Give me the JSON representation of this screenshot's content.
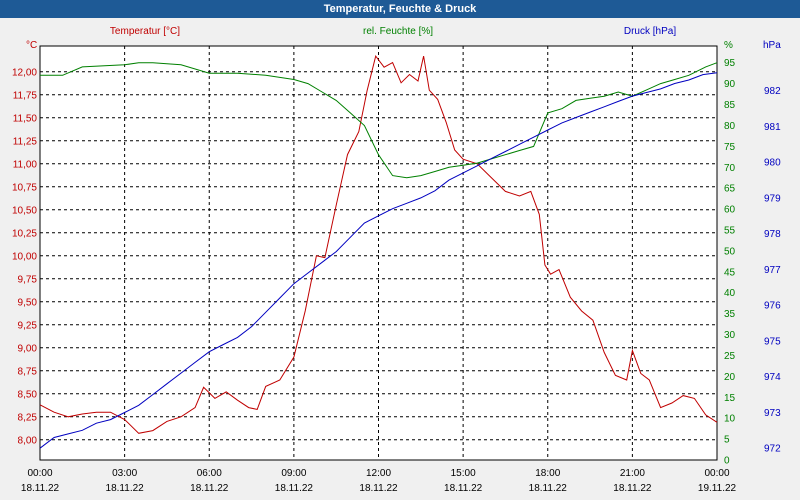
{
  "chart_data": {
    "type": "line",
    "title": "Temperatur, Feuchte & Druck",
    "x_range_hours": [
      0,
      24
    ],
    "x_ticks": [
      {
        "h": 0,
        "time": "00:00",
        "date": "18.11.22"
      },
      {
        "h": 3,
        "time": "03:00",
        "date": "18.11.22"
      },
      {
        "h": 6,
        "time": "06:00",
        "date": "18.11.22"
      },
      {
        "h": 9,
        "time": "09:00",
        "date": "18.11.22"
      },
      {
        "h": 12,
        "time": "12:00",
        "date": "18.11.22"
      },
      {
        "h": 15,
        "time": "15:00",
        "date": "18.11.22"
      },
      {
        "h": 18,
        "time": "18:00",
        "date": "18.11.22"
      },
      {
        "h": 21,
        "time": "21:00",
        "date": "18.11.22"
      },
      {
        "h": 24,
        "time": "00:00",
        "date": "19.11.22"
      }
    ],
    "axes": {
      "temperature": {
        "label": "Temperatur [°C]",
        "unit": "°C",
        "range": [
          7.78,
          12.28
        ],
        "ticks": [
          "8,00",
          "8,25",
          "8,50",
          "8,75",
          "9,00",
          "9,25",
          "9,50",
          "9,75",
          "10,00",
          "10,25",
          "10,50",
          "10,75",
          "11,00",
          "11,25",
          "11,50",
          "11,75",
          "12,00"
        ],
        "color": "#c00000"
      },
      "humidity": {
        "label": "rel. Feuchte [%]",
        "unit": "%",
        "range": [
          0,
          99
        ],
        "ticks": [
          "0",
          "5",
          "10",
          "15",
          "20",
          "25",
          "30",
          "35",
          "40",
          "45",
          "50",
          "55",
          "60",
          "65",
          "70",
          "75",
          "80",
          "85",
          "90",
          "95"
        ],
        "top_tick": "%",
        "color": "#008000"
      },
      "pressure": {
        "label": "Druck [hPa]",
        "unit": "hPa",
        "range": [
          971.67,
          983.25
        ],
        "ticks": [
          "972",
          "973",
          "974",
          "975",
          "976",
          "977",
          "978",
          "979",
          "980",
          "981",
          "982"
        ],
        "color": "#0000c0"
      }
    },
    "series": [
      {
        "name": "Temperatur",
        "axis": "temperature",
        "points": [
          [
            0,
            8.38
          ],
          [
            0.5,
            8.3
          ],
          [
            1,
            8.25
          ],
          [
            1.5,
            8.28
          ],
          [
            2,
            8.3
          ],
          [
            2.5,
            8.3
          ],
          [
            3,
            8.22
          ],
          [
            3.5,
            8.07
          ],
          [
            4,
            8.1
          ],
          [
            4.5,
            8.2
          ],
          [
            5,
            8.25
          ],
          [
            5.5,
            8.35
          ],
          [
            5.8,
            8.57
          ],
          [
            6.2,
            8.45
          ],
          [
            6.6,
            8.52
          ],
          [
            7,
            8.43
          ],
          [
            7.4,
            8.35
          ],
          [
            7.7,
            8.33
          ],
          [
            8,
            8.58
          ],
          [
            8.5,
            8.65
          ],
          [
            9,
            8.9
          ],
          [
            9.4,
            9.4
          ],
          [
            9.8,
            10.0
          ],
          [
            10.1,
            9.98
          ],
          [
            10.5,
            10.55
          ],
          [
            10.9,
            11.1
          ],
          [
            11.3,
            11.35
          ],
          [
            11.6,
            11.8
          ],
          [
            11.9,
            12.17
          ],
          [
            12.2,
            12.05
          ],
          [
            12.5,
            12.1
          ],
          [
            12.8,
            11.88
          ],
          [
            13.1,
            11.97
          ],
          [
            13.4,
            11.9
          ],
          [
            13.6,
            12.17
          ],
          [
            13.8,
            11.8
          ],
          [
            14.1,
            11.7
          ],
          [
            14.4,
            11.45
          ],
          [
            14.7,
            11.15
          ],
          [
            15,
            11.05
          ],
          [
            15.5,
            11.0
          ],
          [
            16,
            10.85
          ],
          [
            16.5,
            10.7
          ],
          [
            17,
            10.65
          ],
          [
            17.4,
            10.7
          ],
          [
            17.7,
            10.45
          ],
          [
            17.9,
            9.9
          ],
          [
            18.1,
            9.8
          ],
          [
            18.4,
            9.85
          ],
          [
            18.8,
            9.55
          ],
          [
            19.2,
            9.4
          ],
          [
            19.6,
            9.3
          ],
          [
            20,
            8.95
          ],
          [
            20.4,
            8.7
          ],
          [
            20.8,
            8.65
          ],
          [
            21,
            8.97
          ],
          [
            21.3,
            8.72
          ],
          [
            21.6,
            8.65
          ],
          [
            22,
            8.35
          ],
          [
            22.4,
            8.4
          ],
          [
            22.8,
            8.48
          ],
          [
            23.2,
            8.45
          ],
          [
            23.6,
            8.27
          ],
          [
            24,
            8.19
          ]
        ]
      },
      {
        "name": "rel. Feuchte",
        "axis": "humidity",
        "points": [
          [
            0,
            92
          ],
          [
            0.8,
            92
          ],
          [
            1.5,
            94
          ],
          [
            3,
            94.5
          ],
          [
            3.5,
            95
          ],
          [
            4,
            95
          ],
          [
            5,
            94.5
          ],
          [
            6,
            92.5
          ],
          [
            7,
            92.5
          ],
          [
            8,
            92
          ],
          [
            9,
            91
          ],
          [
            9.5,
            90
          ],
          [
            10,
            88
          ],
          [
            10.5,
            86
          ],
          [
            11,
            83
          ],
          [
            11.5,
            80
          ],
          [
            12,
            73
          ],
          [
            12.5,
            68
          ],
          [
            13,
            67.5
          ],
          [
            13.5,
            68
          ],
          [
            14,
            69
          ],
          [
            14.5,
            70
          ],
          [
            15,
            70.5
          ],
          [
            15.5,
            71
          ],
          [
            16,
            72
          ],
          [
            16.5,
            73
          ],
          [
            17,
            74
          ],
          [
            17.5,
            75
          ],
          [
            18,
            83
          ],
          [
            18.5,
            84
          ],
          [
            19,
            86
          ],
          [
            19.5,
            86.5
          ],
          [
            20,
            87
          ],
          [
            20.5,
            88
          ],
          [
            21,
            87
          ],
          [
            21.5,
            88.5
          ],
          [
            22,
            90
          ],
          [
            22.5,
            91
          ],
          [
            23,
            92
          ],
          [
            23.6,
            94
          ],
          [
            24,
            95
          ]
        ]
      },
      {
        "name": "Druck",
        "axis": "pressure",
        "points": [
          [
            0,
            972.0
          ],
          [
            0.5,
            972.3
          ],
          [
            1,
            972.4
          ],
          [
            1.5,
            972.5
          ],
          [
            2,
            972.7
          ],
          [
            2.5,
            972.8
          ],
          [
            3,
            973.0
          ],
          [
            3.5,
            973.2
          ],
          [
            4,
            973.5
          ],
          [
            4.5,
            973.8
          ],
          [
            5,
            974.1
          ],
          [
            5.5,
            974.4
          ],
          [
            6,
            974.7
          ],
          [
            6.5,
            974.9
          ],
          [
            7,
            975.1
          ],
          [
            7.5,
            975.4
          ],
          [
            8,
            975.8
          ],
          [
            8.5,
            976.2
          ],
          [
            9,
            976.6
          ],
          [
            9.5,
            976.9
          ],
          [
            10,
            977.2
          ],
          [
            10.5,
            977.5
          ],
          [
            11,
            977.9
          ],
          [
            11.5,
            978.3
          ],
          [
            12,
            978.5
          ],
          [
            12.5,
            978.7
          ],
          [
            13,
            978.85
          ],
          [
            13.5,
            979.0
          ],
          [
            14,
            979.2
          ],
          [
            14.5,
            979.5
          ],
          [
            15,
            979.7
          ],
          [
            15.5,
            979.9
          ],
          [
            16,
            980.1
          ],
          [
            16.5,
            980.3
          ],
          [
            17,
            980.5
          ],
          [
            17.5,
            980.7
          ],
          [
            18,
            980.9
          ],
          [
            18.5,
            981.1
          ],
          [
            19,
            981.25
          ],
          [
            19.5,
            981.4
          ],
          [
            20,
            981.55
          ],
          [
            20.5,
            981.7
          ],
          [
            21,
            981.85
          ],
          [
            21.5,
            981.95
          ],
          [
            22,
            982.05
          ],
          [
            22.5,
            982.2
          ],
          [
            23,
            982.3
          ],
          [
            23.5,
            982.45
          ],
          [
            24,
            982.5
          ]
        ]
      }
    ]
  }
}
